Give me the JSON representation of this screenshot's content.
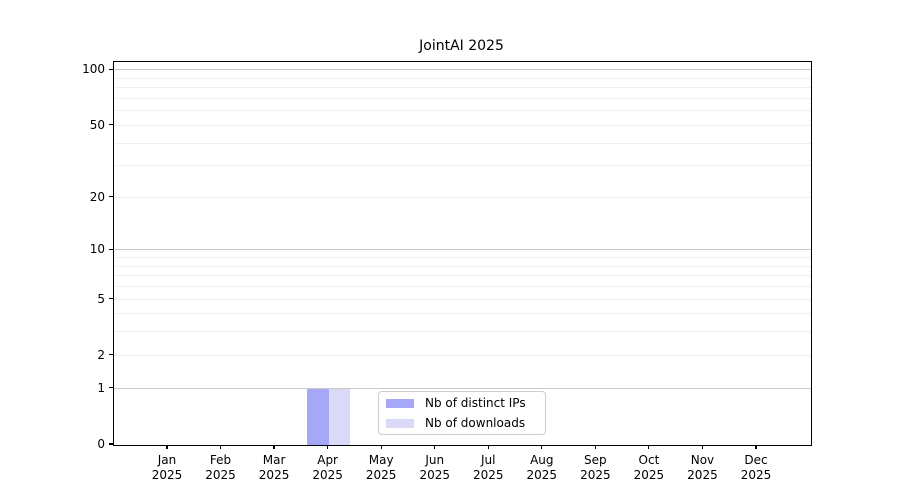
{
  "chart_data": {
    "type": "bar",
    "title": "JointAI 2025",
    "categories": [
      "Jan 2025",
      "Feb 2025",
      "Mar 2025",
      "Apr 2025",
      "May 2025",
      "Jun 2025",
      "Jul 2025",
      "Aug 2025",
      "Sep 2025",
      "Oct 2025",
      "Nov 2025",
      "Dec 2025"
    ],
    "series": [
      {
        "name": "Nb of distinct IPs",
        "color": "#a7a7f7",
        "values": [
          0,
          0,
          0,
          1,
          0,
          0,
          0,
          0,
          0,
          0,
          0,
          0
        ]
      },
      {
        "name": "Nb of downloads",
        "color": "#dadaf8",
        "values": [
          0,
          0,
          0,
          1,
          0,
          0,
          0,
          0,
          0,
          0,
          0,
          0
        ]
      }
    ],
    "y_axis": {
      "scale": "log1p",
      "min": 0,
      "max": 111,
      "tick_values": [
        0,
        1,
        2,
        5,
        10,
        20,
        50,
        100
      ],
      "tick_labels": [
        "0",
        "1",
        "2",
        "5",
        "10",
        "20",
        "50",
        "100"
      ],
      "major_grid_values": [
        1,
        10,
        100
      ],
      "minor_grid_values": [
        2,
        3,
        4,
        5,
        6,
        7,
        8,
        9,
        20,
        30,
        40,
        50,
        60,
        70,
        80,
        90
      ]
    },
    "grid": true,
    "legend": {
      "position": "lower center inside",
      "labels": [
        "Nb of distinct IPs",
        "Nb of downloads"
      ]
    },
    "colors": {
      "grid_major": "#c9c9c9",
      "grid_minor": "#f0f0f0",
      "spine": "#000000",
      "background": "#ffffff",
      "text": "#000000",
      "legend_border": "#cccccc"
    }
  }
}
